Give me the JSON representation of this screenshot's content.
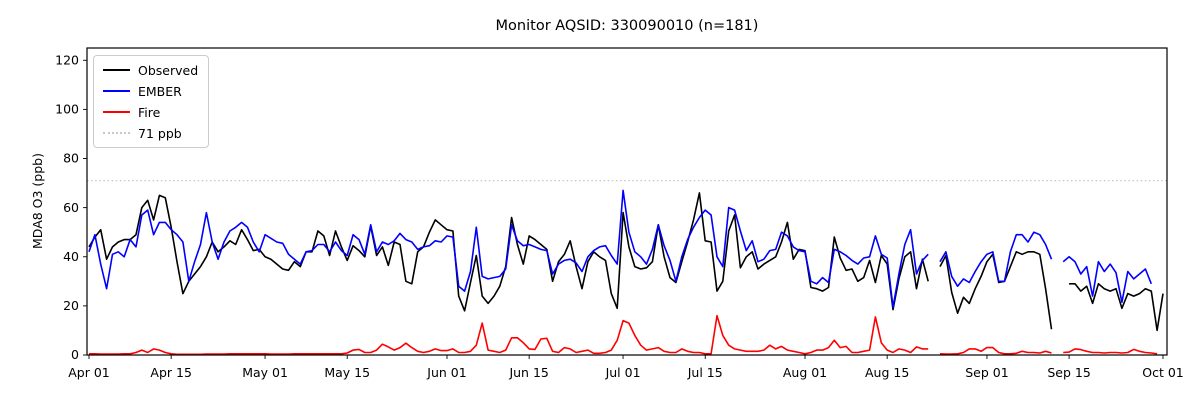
{
  "title": "Monitor AQSID: 330090010 (n=181)",
  "ylabel": "MDA8 O3 (ppb)",
  "legend": {
    "items": [
      {
        "label": "Observed",
        "color": "#000000",
        "style": "solid"
      },
      {
        "label": "EMBER",
        "color": "#0000ff",
        "style": "solid"
      },
      {
        "label": "Fire",
        "color": "#ff0000",
        "style": "solid"
      },
      {
        "label": "71 ppb",
        "color": "#c8c8c8",
        "style": "dotted"
      }
    ]
  },
  "chart_data": {
    "type": "line",
    "x_start": "Apr 01",
    "x_end": "Oct 01",
    "n_days": 184,
    "ylim": [
      0,
      125
    ],
    "yticks": [
      0,
      20,
      40,
      60,
      80,
      100,
      120
    ],
    "xticks": [
      {
        "day": 1,
        "label": "Apr 01"
      },
      {
        "day": 15,
        "label": "Apr 15"
      },
      {
        "day": 31,
        "label": "May 01"
      },
      {
        "day": 45,
        "label": "May 15"
      },
      {
        "day": 62,
        "label": "Jun 01"
      },
      {
        "day": 76,
        "label": "Jun 15"
      },
      {
        "day": 92,
        "label": "Jul 01"
      },
      {
        "day": 106,
        "label": "Jul 15"
      },
      {
        "day": 123,
        "label": "Aug 01"
      },
      {
        "day": 137,
        "label": "Aug 15"
      },
      {
        "day": 154,
        "label": "Sep 01"
      },
      {
        "day": 168,
        "label": "Sep 15"
      },
      {
        "day": 184,
        "label": "Oct 01"
      }
    ],
    "threshold": {
      "value": 71,
      "label": "71 ppb",
      "color": "#c8c8c8"
    },
    "grid": false,
    "legend_position": "upper left",
    "series": [
      {
        "name": "Observed",
        "color": "#000000",
        "values": [
          44,
          48,
          51,
          39,
          44,
          46,
          47,
          47,
          49,
          60,
          63,
          55,
          65,
          64,
          52,
          38,
          25,
          30,
          33,
          36,
          40,
          46,
          42,
          44,
          46.5,
          45,
          51,
          47,
          42.5,
          43,
          40,
          39,
          37,
          35,
          34.5,
          38,
          36,
          42,
          42,
          50.5,
          48.5,
          40.5,
          50.5,
          44,
          38.5,
          44.5,
          42.5,
          40,
          52.5,
          40.5,
          44,
          36.5,
          46,
          45,
          30,
          29,
          42,
          44,
          50,
          55,
          53,
          51,
          50.5,
          24,
          18,
          29.5,
          40.5,
          24,
          21,
          24,
          28,
          36,
          56,
          45,
          37,
          48.5,
          47,
          45,
          43,
          30,
          38,
          41,
          46.5,
          36,
          27,
          38,
          42,
          40,
          38.5,
          25,
          19,
          58,
          44,
          36,
          35,
          35.5,
          38,
          53,
          40,
          31.5,
          29.5,
          38,
          46,
          55,
          66,
          46.5,
          46,
          26,
          30,
          50.5,
          57,
          35.5,
          40,
          42,
          35,
          37,
          38.5,
          40,
          46,
          54,
          39,
          43,
          42.5,
          27.5,
          27,
          26,
          27.5,
          48,
          39.5,
          34.5,
          35,
          30,
          31.5,
          38.5,
          29.5,
          40.5,
          37,
          18.5,
          31,
          40,
          42,
          27,
          39,
          30,
          null,
          36,
          40.5,
          25.5,
          17,
          23.5,
          21,
          27,
          32,
          38,
          41,
          29.5,
          30,
          36,
          42,
          41,
          42,
          42,
          41,
          27,
          10.5,
          null,
          null,
          29,
          29,
          26,
          28,
          21,
          29,
          27,
          26,
          27,
          19,
          25,
          24,
          25,
          27,
          26,
          10,
          25
        ]
      },
      {
        "name": "EMBER",
        "color": "#0000ff",
        "values": [
          42,
          49,
          37,
          27,
          41,
          42,
          40,
          47,
          44,
          57,
          59,
          49,
          54,
          54,
          51,
          49,
          46,
          30,
          38,
          45,
          58,
          46,
          39,
          46,
          50.5,
          52,
          54,
          52,
          46,
          42,
          49,
          47.5,
          46,
          45.5,
          41,
          39,
          37,
          42,
          42.5,
          45,
          45,
          42,
          46,
          42.5,
          40.5,
          49,
          47,
          41,
          53,
          42,
          46,
          45,
          46.5,
          49.5,
          47,
          46,
          43,
          44,
          44.5,
          46.5,
          46,
          48.5,
          48,
          28,
          26,
          34,
          52,
          32,
          31,
          31.5,
          32,
          35,
          53,
          46.5,
          44.5,
          45,
          44,
          43,
          42.5,
          33,
          37,
          38.5,
          39,
          37.5,
          34,
          40,
          42.5,
          44,
          44.5,
          40.5,
          37,
          67,
          50,
          42,
          40,
          37,
          43,
          53,
          44.5,
          38.5,
          30,
          40,
          47,
          52,
          56,
          59,
          57,
          40,
          36,
          60,
          59,
          50.5,
          42.5,
          46.5,
          38,
          39,
          42.5,
          43,
          50,
          48.5,
          44,
          42.5,
          42,
          30,
          29,
          31.5,
          29.5,
          43,
          42,
          40.5,
          38.5,
          37,
          39.5,
          40,
          48.5,
          41,
          39.5,
          19.5,
          33,
          45,
          51,
          33,
          38.5,
          41,
          null,
          38,
          42,
          32,
          28,
          31,
          29.5,
          34,
          38,
          41,
          42,
          30,
          30,
          42,
          49,
          49,
          46,
          50,
          49,
          45,
          39,
          null,
          38,
          40,
          38,
          33,
          36,
          24,
          38,
          34,
          37,
          33.5,
          21.5,
          34,
          31,
          33,
          35,
          29,
          null,
          null
        ]
      },
      {
        "name": "Fire",
        "color": "#ff0000",
        "values": [
          0.5,
          0.5,
          0.4,
          0.4,
          0.4,
          0.4,
          0.5,
          0.5,
          1,
          2,
          1,
          2.5,
          2,
          1,
          0.5,
          0.3,
          0.3,
          0.3,
          0.3,
          0.3,
          0.4,
          0.4,
          0.4,
          0.4,
          0.5,
          0.5,
          0.5,
          0.5,
          0.5,
          0.5,
          0.5,
          0.4,
          0.4,
          0.4,
          0.4,
          0.5,
          0.5,
          0.5,
          0.5,
          0.5,
          0.5,
          0.5,
          0.5,
          0.5,
          0.8,
          2,
          2.3,
          1,
          1,
          2,
          4.4,
          3.3,
          2,
          3,
          4.8,
          3,
          1.5,
          1,
          1.5,
          2.5,
          1.8,
          1.8,
          2.5,
          1,
          1,
          1.5,
          4,
          13,
          2,
          1.5,
          1,
          2,
          7,
          7,
          5,
          2.5,
          2.3,
          6.5,
          6.8,
          1.5,
          1,
          3,
          2.5,
          1,
          1.5,
          2,
          0.7,
          0.7,
          1,
          2,
          6,
          14,
          13,
          8,
          4,
          2,
          2.5,
          3,
          1.5,
          1,
          1,
          2.5,
          1.5,
          1,
          1,
          0.5,
          0.5,
          16,
          8,
          4,
          2.5,
          2,
          1.5,
          1.5,
          1.5,
          2,
          4,
          2.5,
          3.5,
          2,
          1.5,
          1,
          0.5,
          1,
          2,
          2,
          3,
          6,
          3,
          3.5,
          1,
          1,
          1.5,
          2,
          15.5,
          5,
          2,
          1,
          2.5,
          2,
          1,
          3.3,
          2.5,
          2.5,
          null,
          0.5,
          0.4,
          0.4,
          0.5,
          1,
          2.5,
          2.5,
          1.5,
          3,
          3,
          1,
          0.5,
          0.5,
          0.7,
          1.5,
          1,
          1,
          0.8,
          1.5,
          0.8,
          null,
          1,
          1.2,
          2.5,
          2.2,
          1.5,
          1,
          1,
          0.8,
          1,
          1,
          0.8,
          1,
          2.3,
          1.5,
          1,
          0.8,
          0.5,
          null
        ]
      }
    ]
  }
}
